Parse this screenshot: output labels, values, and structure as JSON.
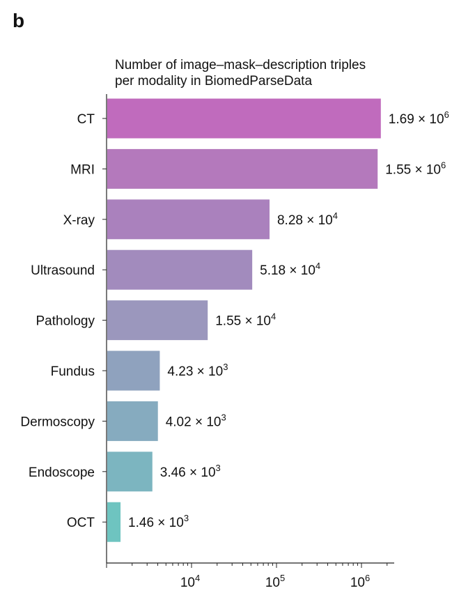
{
  "panel_label": "b",
  "chart_data": {
    "type": "bar",
    "orientation": "horizontal",
    "title_lines": [
      "Number of image–mask–description triples",
      "per modality in BiomedParseData"
    ],
    "xlabel": "",
    "ylabel": "",
    "x_scale": "log",
    "xlim": [
      1000,
      2300000
    ],
    "x_ticks": [
      {
        "value": 10000,
        "base": "10",
        "exp": "4"
      },
      {
        "value": 100000,
        "base": "10",
        "exp": "5"
      },
      {
        "value": 1000000,
        "base": "10",
        "exp": "6"
      }
    ],
    "grid": false,
    "categories": [
      "CT",
      "MRI",
      "X-ray",
      "Ultrasound",
      "Pathology",
      "Fundus",
      "Dermoscopy",
      "Endoscope",
      "OCT"
    ],
    "values": [
      1690000,
      1550000,
      82800,
      51800,
      15500,
      4230,
      4020,
      3460,
      1460
    ],
    "label_mantissas": [
      "1.69",
      "1.55",
      "8.28",
      "5.18",
      "1.55",
      "4.23",
      "4.02",
      "3.46",
      "1.46"
    ],
    "label_exponents": [
      "6",
      "6",
      "4",
      "4",
      "4",
      "3",
      "3",
      "3",
      "3"
    ],
    "colors": [
      "#c06bbd",
      "#b479bc",
      "#aa81bd",
      "#a28bbd",
      "#9b97bd",
      "#8fa2be",
      "#86abbf",
      "#7cb5c0",
      "#6ec4c0"
    ]
  }
}
